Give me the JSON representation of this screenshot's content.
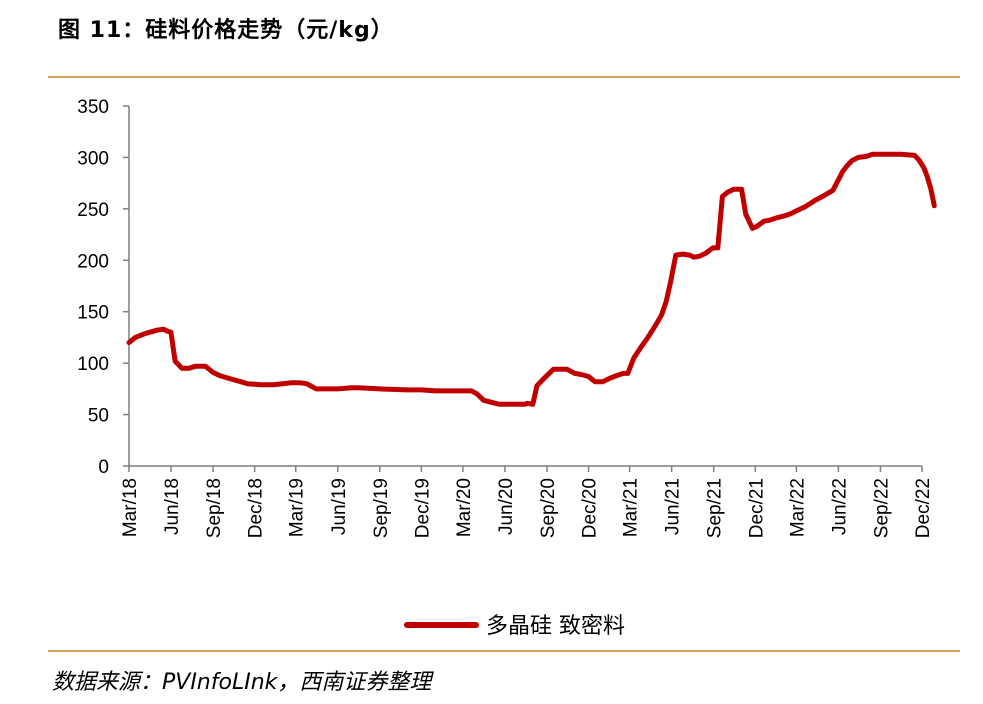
{
  "header": {
    "title": "图 11：硅料价格走势（元/kg）"
  },
  "footer": {
    "source": "数据来源：PVInfoLInk，西南证券整理"
  },
  "colors": {
    "series": "#c00000",
    "rule": "#d9a25c",
    "axis": "#7f7f7f"
  },
  "chart_data": {
    "type": "line",
    "title": "图 11：硅料价格走势（元/kg）",
    "ylim": [
      0,
      350
    ],
    "yticks": [
      0,
      50,
      100,
      150,
      200,
      250,
      300,
      350
    ],
    "xlim": [
      "2018-03",
      "2022-12"
    ],
    "xticks": [
      "Mar/18",
      "Jun/18",
      "Sep/18",
      "Dec/18",
      "Mar/19",
      "Jun/19",
      "Sep/19",
      "Dec/19",
      "Mar/20",
      "Jun/20",
      "Sep/20",
      "Dec/20",
      "Mar/21",
      "Jun/21",
      "Sep/21",
      "Dec/21",
      "Mar/22",
      "Jun/22",
      "Sep/22",
      "Dec/22"
    ],
    "legend_position": "bottom",
    "grid": false,
    "series": [
      {
        "name": "多晶硅 致密料",
        "x": [
          "2018-03-01",
          "2018-03-15",
          "2018-04-01",
          "2018-04-15",
          "2018-05-01",
          "2018-05-15",
          "2018-05-25",
          "2018-06-01",
          "2018-06-10",
          "2018-06-25",
          "2018-07-10",
          "2018-07-25",
          "2018-08-15",
          "2018-09-01",
          "2018-09-15",
          "2018-10-15",
          "2018-11-01",
          "2018-11-15",
          "2018-12-15",
          "2019-01-10",
          "2019-02-01",
          "2019-02-20",
          "2019-03-10",
          "2019-03-25",
          "2019-04-15",
          "2019-05-01",
          "2019-06-01",
          "2019-07-01",
          "2019-07-15",
          "2019-09-01",
          "2019-11-01",
          "2019-12-01",
          "2020-01-01",
          "2020-03-01",
          "2020-03-20",
          "2020-04-01",
          "2020-04-15",
          "2020-05-01",
          "2020-05-20",
          "2020-06-15",
          "2020-07-01",
          "2020-07-15",
          "2020-07-20",
          "2020-08-01",
          "2020-08-10",
          "2020-08-25",
          "2020-09-15",
          "2020-10-01",
          "2020-10-15",
          "2020-11-01",
          "2020-11-15",
          "2020-12-01",
          "2020-12-15",
          "2021-01-01",
          "2021-01-15",
          "2021-02-01",
          "2021-02-15",
          "2021-02-25",
          "2021-03-10",
          "2021-03-25",
          "2021-04-10",
          "2021-04-20",
          "2021-05-01",
          "2021-05-10",
          "2021-05-20",
          "2021-05-30",
          "2021-06-10",
          "2021-06-25",
          "2021-07-10",
          "2021-07-20",
          "2021-08-01",
          "2021-08-15",
          "2021-08-30",
          "2021-09-10",
          "2021-09-20",
          "2021-10-01",
          "2021-10-15",
          "2021-11-01",
          "2021-11-10",
          "2021-11-25",
          "2021-12-05",
          "2021-12-20",
          "2022-01-01",
          "2022-01-15",
          "2022-02-01",
          "2022-02-15",
          "2022-03-01",
          "2022-03-20",
          "2022-04-10",
          "2022-05-01",
          "2022-05-20",
          "2022-06-10",
          "2022-06-20",
          "2022-07-01",
          "2022-07-15",
          "2022-08-01",
          "2022-08-15",
          "2022-08-25",
          "2022-09-15",
          "2022-10-15",
          "2022-11-15",
          "2022-11-25",
          "2022-12-05",
          "2022-12-12",
          "2022-12-20",
          "2022-12-28"
        ],
        "y": [
          120,
          125,
          128,
          130,
          132,
          133,
          131,
          130,
          102,
          95,
          95,
          97,
          97,
          91,
          88,
          84,
          82,
          80,
          79,
          79,
          80,
          81,
          81,
          80,
          75,
          75,
          75,
          76,
          76,
          75,
          74,
          74,
          73,
          73,
          73,
          70,
          64,
          62,
          60,
          60,
          60,
          60,
          61,
          60,
          78,
          85,
          94,
          94,
          94,
          90,
          89,
          87,
          82,
          82,
          85,
          88,
          90,
          90,
          105,
          115,
          125,
          132,
          140,
          147,
          160,
          180,
          205,
          206,
          205,
          203,
          204,
          207,
          212,
          212,
          262,
          266,
          269,
          269,
          245,
          231,
          233,
          238,
          239,
          241,
          243,
          245,
          248,
          252,
          258,
          263,
          268,
          286,
          292,
          297,
          300,
          301,
          303,
          303,
          303,
          303,
          302,
          297,
          290,
          282,
          270,
          253
        ]
      }
    ]
  }
}
